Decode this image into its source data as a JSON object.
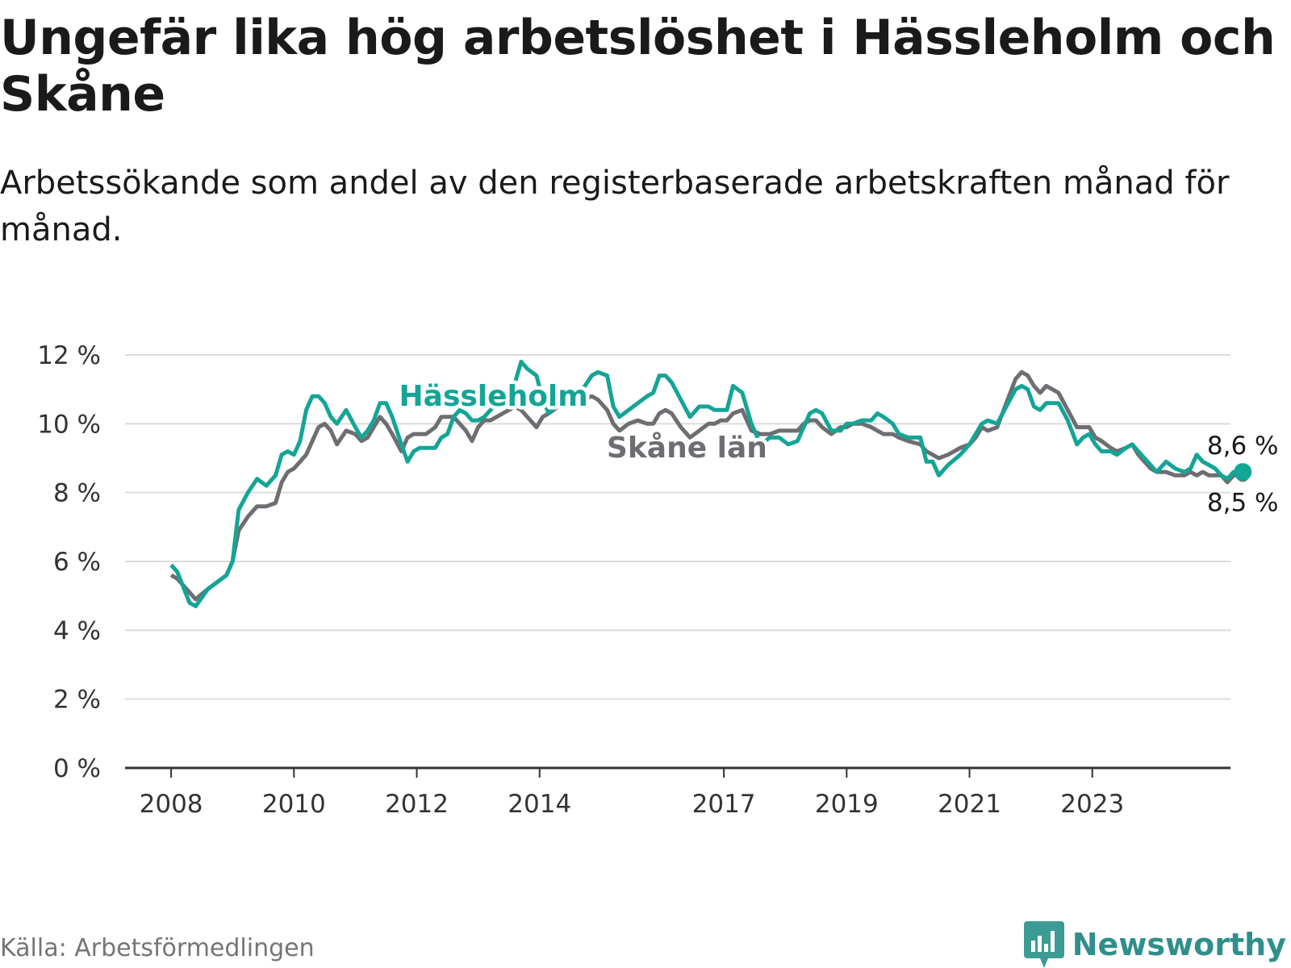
{
  "header": {
    "title": "Ungefär lika hög arbetslöshet i Hässleholm och Skåne",
    "subtitle": "Arbetssökande som andel av den registerbaserade arbetskraften månad för månad."
  },
  "footer": {
    "source": "Källa: Arbetsförmedlingen",
    "brand": "Newsworthy"
  },
  "colors": {
    "hassleholm": "#13a596",
    "skane": "#6d6d72",
    "grid": "#dcdcdc",
    "axis": "#333333"
  },
  "chart_data": {
    "type": "line",
    "title": "Ungefär lika hög arbetslöshet i Hässleholm och Skåne",
    "xlabel": "",
    "ylabel": "",
    "ylim": [
      0,
      12
    ],
    "xlim": [
      2007.25,
      2025.25
    ],
    "y_ticks": [
      "0 %",
      "2 %",
      "4 %",
      "6 %",
      "8 %",
      "10 %",
      "12 %"
    ],
    "y_tick_values": [
      0,
      2,
      4,
      6,
      8,
      10,
      12
    ],
    "x_ticks": [
      "2008",
      "2010",
      "2012",
      "2014",
      "2017",
      "2019",
      "2021",
      "2023"
    ],
    "x_tick_values": [
      2008,
      2010,
      2012,
      2014,
      2017,
      2019,
      2021,
      2023
    ],
    "legend": "inline labels",
    "grid": true,
    "series": [
      {
        "name": "Hässleholm",
        "label_at": [
          2013.25,
          10.8
        ],
        "end_label": "8,6 %",
        "points": [
          [
            2008.0,
            5.9
          ],
          [
            2008.1,
            5.7
          ],
          [
            2008.3,
            4.8
          ],
          [
            2008.4,
            4.7
          ],
          [
            2008.6,
            5.2
          ],
          [
            2008.75,
            5.4
          ],
          [
            2008.9,
            5.6
          ],
          [
            2009.0,
            6.0
          ],
          [
            2009.1,
            7.5
          ],
          [
            2009.25,
            8.0
          ],
          [
            2009.4,
            8.4
          ],
          [
            2009.55,
            8.2
          ],
          [
            2009.7,
            8.5
          ],
          [
            2009.8,
            9.1
          ],
          [
            2009.9,
            9.2
          ],
          [
            2010.0,
            9.1
          ],
          [
            2010.1,
            9.5
          ],
          [
            2010.2,
            10.4
          ],
          [
            2010.3,
            10.8
          ],
          [
            2010.4,
            10.8
          ],
          [
            2010.5,
            10.6
          ],
          [
            2010.6,
            10.2
          ],
          [
            2010.7,
            10.0
          ],
          [
            2010.85,
            10.4
          ],
          [
            2011.0,
            9.9
          ],
          [
            2011.1,
            9.6
          ],
          [
            2011.2,
            9.8
          ],
          [
            2011.3,
            10.1
          ],
          [
            2011.4,
            10.6
          ],
          [
            2011.5,
            10.6
          ],
          [
            2011.6,
            10.2
          ],
          [
            2011.75,
            9.4
          ],
          [
            2011.85,
            8.9
          ],
          [
            2011.95,
            9.2
          ],
          [
            2012.05,
            9.3
          ],
          [
            2012.15,
            9.3
          ],
          [
            2012.3,
            9.3
          ],
          [
            2012.4,
            9.6
          ],
          [
            2012.5,
            9.7
          ],
          [
            2012.6,
            10.2
          ],
          [
            2012.7,
            10.4
          ],
          [
            2012.8,
            10.3
          ],
          [
            2012.9,
            10.1
          ],
          [
            2013.0,
            10.1
          ],
          [
            2013.1,
            10.2
          ],
          [
            2013.2,
            10.4
          ],
          [
            2013.3,
            10.6
          ],
          [
            2013.4,
            10.8
          ],
          [
            2013.5,
            11.0
          ],
          [
            2013.6,
            11.2
          ],
          [
            2013.7,
            11.8
          ],
          [
            2013.8,
            11.6
          ],
          [
            2013.95,
            11.4
          ],
          [
            2014.05,
            10.7
          ],
          [
            2014.15,
            10.3
          ],
          [
            2014.3,
            10.6
          ],
          [
            2014.5,
            10.8
          ],
          [
            2014.7,
            11.0
          ],
          [
            2014.85,
            11.4
          ],
          [
            2014.95,
            11.5
          ],
          [
            2015.1,
            11.4
          ],
          [
            2015.2,
            10.5
          ],
          [
            2015.3,
            10.2
          ],
          [
            2015.45,
            10.4
          ],
          [
            2015.6,
            10.6
          ],
          [
            2015.75,
            10.8
          ],
          [
            2015.85,
            10.9
          ],
          [
            2015.95,
            11.4
          ],
          [
            2016.05,
            11.4
          ],
          [
            2016.15,
            11.2
          ],
          [
            2016.3,
            10.7
          ],
          [
            2016.45,
            10.2
          ],
          [
            2016.6,
            10.5
          ],
          [
            2016.75,
            10.5
          ],
          [
            2016.85,
            10.4
          ],
          [
            2016.95,
            10.4
          ],
          [
            2017.05,
            10.4
          ],
          [
            2017.15,
            11.1
          ],
          [
            2017.3,
            10.9
          ],
          [
            2017.45,
            10.0
          ],
          [
            2017.6,
            9.4
          ],
          [
            2017.75,
            9.6
          ],
          [
            2017.9,
            9.6
          ],
          [
            2018.05,
            9.4
          ],
          [
            2018.2,
            9.5
          ],
          [
            2018.3,
            9.9
          ],
          [
            2018.4,
            10.3
          ],
          [
            2018.5,
            10.4
          ],
          [
            2018.6,
            10.3
          ],
          [
            2018.75,
            9.8
          ],
          [
            2018.9,
            9.8
          ],
          [
            2019.0,
            10.0
          ],
          [
            2019.1,
            10.0
          ],
          [
            2019.25,
            10.1
          ],
          [
            2019.4,
            10.1
          ],
          [
            2019.5,
            10.3
          ],
          [
            2019.6,
            10.2
          ],
          [
            2019.75,
            10.0
          ],
          [
            2019.85,
            9.7
          ],
          [
            2020.0,
            9.6
          ],
          [
            2020.2,
            9.6
          ],
          [
            2020.3,
            8.9
          ],
          [
            2020.4,
            8.9
          ],
          [
            2020.5,
            8.5
          ],
          [
            2020.65,
            8.8
          ],
          [
            2020.85,
            9.1
          ],
          [
            2021.0,
            9.4
          ],
          [
            2021.1,
            9.7
          ],
          [
            2021.2,
            10.0
          ],
          [
            2021.3,
            10.1
          ],
          [
            2021.45,
            10.0
          ],
          [
            2021.6,
            10.5
          ],
          [
            2021.75,
            11.0
          ],
          [
            2021.85,
            11.1
          ],
          [
            2021.95,
            11.0
          ],
          [
            2022.05,
            10.5
          ],
          [
            2022.15,
            10.4
          ],
          [
            2022.25,
            10.6
          ],
          [
            2022.45,
            10.6
          ],
          [
            2022.6,
            10.1
          ],
          [
            2022.75,
            9.4
          ],
          [
            2022.85,
            9.6
          ],
          [
            2022.95,
            9.7
          ],
          [
            2023.05,
            9.4
          ],
          [
            2023.15,
            9.2
          ],
          [
            2023.3,
            9.2
          ],
          [
            2023.4,
            9.1
          ],
          [
            2023.55,
            9.3
          ],
          [
            2023.65,
            9.4
          ],
          [
            2023.75,
            9.2
          ],
          [
            2023.85,
            9.0
          ],
          [
            2023.95,
            8.8
          ],
          [
            2024.05,
            8.6
          ],
          [
            2024.2,
            8.9
          ],
          [
            2024.35,
            8.7
          ],
          [
            2024.5,
            8.6
          ],
          [
            2024.6,
            8.7
          ],
          [
            2024.7,
            9.1
          ],
          [
            2024.8,
            8.9
          ],
          [
            2024.9,
            8.8
          ],
          [
            2025.0,
            8.7
          ],
          [
            2025.1,
            8.5
          ],
          [
            2025.2,
            8.4
          ],
          [
            2025.3,
            8.6
          ],
          [
            2025.45,
            8.6
          ]
        ]
      },
      {
        "name": "Skåne län",
        "label_at": [
          2016.4,
          9.3
        ],
        "end_label": "8,5 %",
        "points": [
          [
            2008.0,
            5.6
          ],
          [
            2008.1,
            5.5
          ],
          [
            2008.3,
            5.1
          ],
          [
            2008.4,
            4.9
          ],
          [
            2008.6,
            5.2
          ],
          [
            2008.75,
            5.4
          ],
          [
            2008.9,
            5.6
          ],
          [
            2009.0,
            6.0
          ],
          [
            2009.1,
            6.9
          ],
          [
            2009.25,
            7.3
          ],
          [
            2009.4,
            7.6
          ],
          [
            2009.55,
            7.6
          ],
          [
            2009.7,
            7.7
          ],
          [
            2009.8,
            8.3
          ],
          [
            2009.9,
            8.6
          ],
          [
            2010.0,
            8.7
          ],
          [
            2010.1,
            8.9
          ],
          [
            2010.2,
            9.1
          ],
          [
            2010.3,
            9.5
          ],
          [
            2010.4,
            9.9
          ],
          [
            2010.5,
            10.0
          ],
          [
            2010.6,
            9.8
          ],
          [
            2010.7,
            9.4
          ],
          [
            2010.85,
            9.8
          ],
          [
            2011.0,
            9.7
          ],
          [
            2011.1,
            9.5
          ],
          [
            2011.2,
            9.6
          ],
          [
            2011.3,
            9.9
          ],
          [
            2011.4,
            10.2
          ],
          [
            2011.5,
            10.0
          ],
          [
            2011.6,
            9.7
          ],
          [
            2011.75,
            9.2
          ],
          [
            2011.85,
            9.6
          ],
          [
            2011.95,
            9.7
          ],
          [
            2012.05,
            9.7
          ],
          [
            2012.15,
            9.7
          ],
          [
            2012.3,
            9.9
          ],
          [
            2012.4,
            10.2
          ],
          [
            2012.5,
            10.2
          ],
          [
            2012.6,
            10.2
          ],
          [
            2012.7,
            10.0
          ],
          [
            2012.8,
            9.8
          ],
          [
            2012.9,
            9.5
          ],
          [
            2013.0,
            9.9
          ],
          [
            2013.1,
            10.1
          ],
          [
            2013.2,
            10.1
          ],
          [
            2013.3,
            10.2
          ],
          [
            2013.4,
            10.3
          ],
          [
            2013.5,
            10.4
          ],
          [
            2013.6,
            10.5
          ],
          [
            2013.7,
            10.4
          ],
          [
            2013.8,
            10.2
          ],
          [
            2013.95,
            9.9
          ],
          [
            2014.05,
            10.2
          ],
          [
            2014.15,
            10.3
          ],
          [
            2014.3,
            10.5
          ],
          [
            2014.5,
            10.6
          ],
          [
            2014.7,
            10.7
          ],
          [
            2014.85,
            10.8
          ],
          [
            2014.95,
            10.7
          ],
          [
            2015.1,
            10.4
          ],
          [
            2015.2,
            10.0
          ],
          [
            2015.3,
            9.8
          ],
          [
            2015.45,
            10.0
          ],
          [
            2015.6,
            10.1
          ],
          [
            2015.75,
            10.0
          ],
          [
            2015.85,
            10.0
          ],
          [
            2015.95,
            10.3
          ],
          [
            2016.05,
            10.4
          ],
          [
            2016.15,
            10.3
          ],
          [
            2016.3,
            9.9
          ],
          [
            2016.45,
            9.6
          ],
          [
            2016.6,
            9.8
          ],
          [
            2016.75,
            10.0
          ],
          [
            2016.85,
            10.0
          ],
          [
            2016.95,
            10.1
          ],
          [
            2017.05,
            10.1
          ],
          [
            2017.15,
            10.3
          ],
          [
            2017.3,
            10.4
          ],
          [
            2017.45,
            9.8
          ],
          [
            2017.6,
            9.7
          ],
          [
            2017.75,
            9.7
          ],
          [
            2017.9,
            9.8
          ],
          [
            2018.05,
            9.8
          ],
          [
            2018.2,
            9.8
          ],
          [
            2018.3,
            10.0
          ],
          [
            2018.4,
            10.1
          ],
          [
            2018.5,
            10.1
          ],
          [
            2018.6,
            9.9
          ],
          [
            2018.75,
            9.7
          ],
          [
            2018.9,
            9.9
          ],
          [
            2019.0,
            9.9
          ],
          [
            2019.1,
            10.0
          ],
          [
            2019.25,
            10.0
          ],
          [
            2019.4,
            9.9
          ],
          [
            2019.5,
            9.8
          ],
          [
            2019.6,
            9.7
          ],
          [
            2019.75,
            9.7
          ],
          [
            2019.85,
            9.6
          ],
          [
            2020.0,
            9.5
          ],
          [
            2020.2,
            9.4
          ],
          [
            2020.3,
            9.2
          ],
          [
            2020.4,
            9.1
          ],
          [
            2020.5,
            9.0
          ],
          [
            2020.65,
            9.1
          ],
          [
            2020.85,
            9.3
          ],
          [
            2021.0,
            9.4
          ],
          [
            2021.1,
            9.6
          ],
          [
            2021.2,
            9.9
          ],
          [
            2021.3,
            9.8
          ],
          [
            2021.45,
            9.9
          ],
          [
            2021.6,
            10.6
          ],
          [
            2021.75,
            11.3
          ],
          [
            2021.85,
            11.5
          ],
          [
            2021.95,
            11.4
          ],
          [
            2022.05,
            11.1
          ],
          [
            2022.15,
            10.9
          ],
          [
            2022.25,
            11.1
          ],
          [
            2022.45,
            10.9
          ],
          [
            2022.6,
            10.4
          ],
          [
            2022.75,
            9.9
          ],
          [
            2022.85,
            9.9
          ],
          [
            2022.95,
            9.9
          ],
          [
            2023.05,
            9.6
          ],
          [
            2023.15,
            9.5
          ],
          [
            2023.3,
            9.3
          ],
          [
            2023.4,
            9.2
          ],
          [
            2023.55,
            9.3
          ],
          [
            2023.65,
            9.4
          ],
          [
            2023.75,
            9.1
          ],
          [
            2023.85,
            8.9
          ],
          [
            2023.95,
            8.7
          ],
          [
            2024.05,
            8.6
          ],
          [
            2024.2,
            8.6
          ],
          [
            2024.35,
            8.5
          ],
          [
            2024.5,
            8.5
          ],
          [
            2024.6,
            8.6
          ],
          [
            2024.7,
            8.5
          ],
          [
            2024.8,
            8.6
          ],
          [
            2024.9,
            8.5
          ],
          [
            2025.0,
            8.5
          ],
          [
            2025.1,
            8.5
          ],
          [
            2025.2,
            8.3
          ],
          [
            2025.3,
            8.5
          ],
          [
            2025.45,
            8.5
          ]
        ]
      }
    ]
  }
}
